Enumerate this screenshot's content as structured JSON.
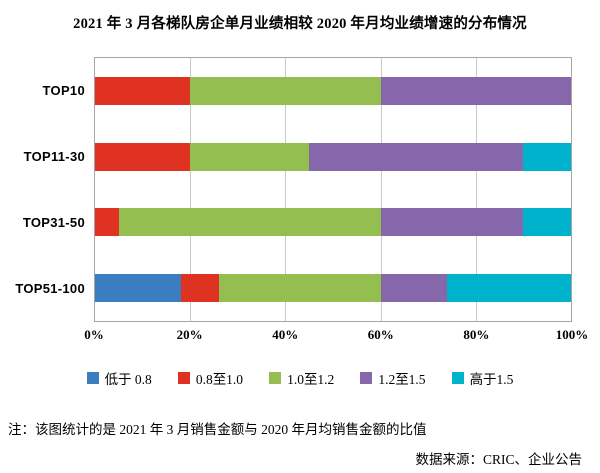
{
  "title": "2021 年 3 月各梯队房企单月业绩相较 2020 年月均业绩增速的分布情况",
  "note": "注：该图统计的是 2021 年 3 月销售金额与 2020 年月均销售金额的比值",
  "source": "数据来源：CRIC、企业公告",
  "chart_data": {
    "type": "bar",
    "orientation": "horizontal",
    "stacked": true,
    "categories": [
      "TOP10",
      "TOP11-30",
      "TOP31-50",
      "TOP51-100"
    ],
    "series": [
      {
        "name": "低于 0.8",
        "color": "#3a7ebf",
        "values": [
          0,
          0,
          0,
          18
        ]
      },
      {
        "name": "0.8至1.0",
        "color": "#df3222",
        "values": [
          20,
          20,
          5,
          8
        ]
      },
      {
        "name": "1.0至1.2",
        "color": "#94be4f",
        "values": [
          40,
          25,
          55,
          34
        ]
      },
      {
        "name": "1.2至1.5",
        "color": "#8667ac",
        "values": [
          40,
          45,
          30,
          14
        ]
      },
      {
        "name": "高于1.5",
        "color": "#00b3cd",
        "values": [
          0,
          10,
          10,
          26
        ]
      }
    ],
    "x_ticks": [
      "0%",
      "20%",
      "40%",
      "60%",
      "80%",
      "100%"
    ],
    "xlim": [
      0,
      100
    ],
    "grid": true,
    "legend_position": "bottom"
  }
}
